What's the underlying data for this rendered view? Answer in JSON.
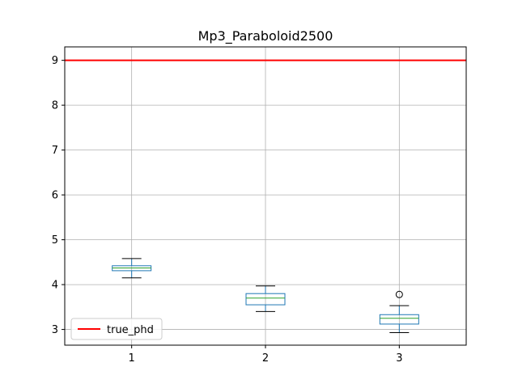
{
  "chart_data": {
    "type": "box",
    "title": "Mp3_Paraboloid2500",
    "xlabel": "",
    "ylabel": "",
    "categories": [
      "1",
      "2",
      "3"
    ],
    "boxes": [
      {
        "category": "1",
        "whisker_low": 4.15,
        "q1": 4.31,
        "median": 4.37,
        "q3": 4.42,
        "whisker_high": 4.58,
        "outliers": []
      },
      {
        "category": "2",
        "whisker_low": 3.4,
        "q1": 3.55,
        "median": 3.7,
        "q3": 3.8,
        "whisker_high": 3.97,
        "outliers": []
      },
      {
        "category": "3",
        "whisker_low": 2.93,
        "q1": 3.12,
        "median": 3.25,
        "q3": 3.33,
        "whisker_high": 3.53,
        "outliers": [
          3.78
        ]
      }
    ],
    "reference_line": {
      "name": "true_phd",
      "value": 9.0,
      "color": "#ff0000"
    },
    "ylim": [
      2.65,
      9.3
    ],
    "xlim": [
      0.5,
      3.5
    ],
    "yticks": [
      3,
      4,
      5,
      6,
      7,
      8,
      9
    ],
    "grid": true,
    "legend_position": "lower-left",
    "colors": {
      "box": "#1f77b4",
      "median": "#2ca02c",
      "whisker": "#000000",
      "grid": "#b0b0b0"
    }
  }
}
